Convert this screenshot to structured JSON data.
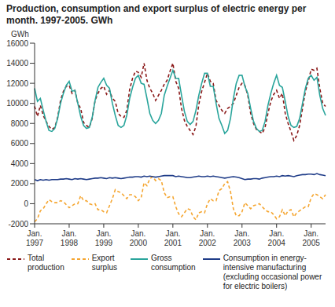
{
  "chart_data": {
    "type": "line",
    "title": "Production, consumption and export surplus of electric energy per month. 1997-2005. GWh",
    "y_label": "GWh",
    "categories": [
      "Jan. 1997",
      null,
      null,
      null,
      null,
      null,
      null,
      null,
      null,
      null,
      null,
      null,
      "Jan. 1998",
      null,
      null,
      null,
      null,
      null,
      null,
      null,
      null,
      null,
      null,
      null,
      "Jan. 1999",
      null,
      null,
      null,
      null,
      null,
      null,
      null,
      null,
      null,
      null,
      null,
      "Jan. 2000",
      null,
      null,
      null,
      null,
      null,
      null,
      null,
      null,
      null,
      null,
      null,
      "Jan. 2001",
      null,
      null,
      null,
      null,
      null,
      null,
      null,
      null,
      null,
      null,
      null,
      "Jan. 2002",
      null,
      null,
      null,
      null,
      null,
      null,
      null,
      null,
      null,
      null,
      null,
      "Jan. 2003",
      null,
      null,
      null,
      null,
      null,
      null,
      null,
      null,
      null,
      null,
      null,
      "Jan. 2004",
      null,
      null,
      null,
      null,
      null,
      null,
      null,
      null,
      null,
      null,
      null,
      "Jan. 2005",
      null,
      null,
      null,
      null,
      null
    ],
    "series": [
      {
        "name": "Total production",
        "color": "#8b1a1a",
        "line_style": "dashed",
        "values": [
          9700,
          8700,
          9800,
          8800,
          8200,
          7700,
          7400,
          7600,
          8600,
          10300,
          11200,
          11700,
          11800,
          11000,
          11300,
          10000,
          9500,
          8100,
          7800,
          7600,
          8500,
          10300,
          11000,
          11500,
          11700,
          10900,
          11300,
          10500,
          10200,
          9000,
          8700,
          8600,
          9300,
          11400,
          12500,
          13200,
          13100,
          12600,
          14000,
          12300,
          11500,
          11000,
          10300,
          10800,
          11300,
          11900,
          12300,
          13200,
          14000,
          12200,
          11500,
          9500,
          8300,
          7700,
          7300,
          6900,
          7700,
          9900,
          11200,
          12100,
          13000,
          12200,
          12000,
          10300,
          9800,
          9300,
          9000,
          9500,
          9700,
          10000,
          10800,
          11600,
          12000,
          11800,
          10800,
          9000,
          8000,
          7400,
          7200,
          7000,
          7600,
          9000,
          10200,
          10900,
          11300,
          10500,
          11000,
          9000,
          8000,
          7200,
          6300,
          6800,
          7800,
          9500,
          11200,
          12200,
          13400,
          13300,
          13500,
          11500,
          10000,
          9700
        ]
      },
      {
        "name": "Export surplus",
        "color": "#f5a631",
        "line_style": "dashed",
        "values": [
          -1800,
          -1500,
          -700,
          -500,
          0,
          400,
          200,
          100,
          100,
          300,
          200,
          -100,
          -400,
          -200,
          0,
          0,
          800,
          300,
          300,
          0,
          -100,
          0,
          -600,
          -600,
          -800,
          -900,
          -200,
          500,
          1400,
          1200,
          1100,
          800,
          500,
          900,
          900,
          700,
          300,
          600,
          2100,
          1800,
          2500,
          2700,
          2300,
          2500,
          2300,
          1100,
          600,
          700,
          700,
          -300,
          -1000,
          -1300,
          -900,
          -500,
          -600,
          -1300,
          -1600,
          -900,
          -800,
          -900,
          0,
          500,
          300,
          300,
          1300,
          1500,
          2000,
          2200,
          1200,
          -500,
          -1200,
          -1200,
          -800,
          100,
          -200,
          -500,
          -200,
          -100,
          0,
          -300,
          -600,
          -800,
          -800,
          -1100,
          -1500,
          -1300,
          -600,
          -1200,
          -700,
          -600,
          -1300,
          -900,
          -700,
          -500,
          -300,
          -300,
          600,
          1000,
          900,
          700,
          500,
          900
        ]
      },
      {
        "name": "Gross consumption",
        "color": "#2aa59c",
        "line_style": "solid",
        "values": [
          11500,
          10200,
          10500,
          9300,
          8200,
          7300,
          7200,
          7500,
          8500,
          10000,
          11000,
          11800,
          12200,
          11200,
          11300,
          10000,
          8700,
          7800,
          7500,
          7600,
          8600,
          10300,
          11600,
          12100,
          12500,
          11800,
          11500,
          10000,
          8800,
          7800,
          7600,
          7800,
          8800,
          10500,
          11600,
          12500,
          12800,
          12000,
          11900,
          10500,
          9000,
          8300,
          8000,
          8300,
          9000,
          10800,
          11700,
          12500,
          13300,
          12500,
          12500,
          10800,
          9200,
          8200,
          7900,
          8200,
          9300,
          10800,
          12000,
          13000,
          13000,
          11700,
          11700,
          10000,
          8500,
          7800,
          7000,
          7300,
          8500,
          10500,
          12000,
          12800,
          12800,
          11700,
          11000,
          9500,
          8200,
          7500,
          7200,
          7300,
          8200,
          9800,
          11000,
          12000,
          12800,
          11800,
          11600,
          10200,
          8700,
          7800,
          7600,
          7700,
          8500,
          10000,
          11500,
          12500,
          12800,
          12300,
          12600,
          10800,
          9500,
          8800
        ]
      },
      {
        "name": "Consumption in energy-intensive manufacturing (excluding occasional power for electric boilers)",
        "color": "#1f3c88",
        "line_style": "solid",
        "values": [
          2400,
          2300,
          2400,
          2350,
          2400,
          2350,
          2400,
          2400,
          2400,
          2450,
          2450,
          2500,
          2450,
          2400,
          2500,
          2450,
          2500,
          2450,
          2400,
          2450,
          2500,
          2550,
          2550,
          2600,
          2550,
          2500,
          2600,
          2550,
          2600,
          2550,
          2500,
          2550,
          2600,
          2650,
          2650,
          2700,
          2700,
          2650,
          2750,
          2700,
          2750,
          2700,
          2650,
          2700,
          2750,
          2800,
          2800,
          2800,
          2800,
          2700,
          2750,
          2700,
          2650,
          2600,
          2600,
          2650,
          2700,
          2750,
          2700,
          2700,
          2750,
          2700,
          2750,
          2700,
          2650,
          2600,
          2550,
          2600,
          2650,
          2700,
          2650,
          2600,
          2500,
          2400,
          2450,
          2450,
          2500,
          2500,
          2450,
          2550,
          2600,
          2650,
          2700,
          2700,
          2750,
          2700,
          2800,
          2750,
          2800,
          2750,
          2700,
          2800,
          2850,
          2900,
          2900,
          2950,
          2950,
          2900,
          3000,
          2900,
          2850,
          2800
        ]
      }
    ],
    "ylim": [
      -2000,
      16000
    ],
    "yticks": [
      -2000,
      0,
      2000,
      4000,
      6000,
      8000,
      10000,
      12000,
      14000,
      16000
    ],
    "grid": false,
    "legend": "bottom"
  }
}
